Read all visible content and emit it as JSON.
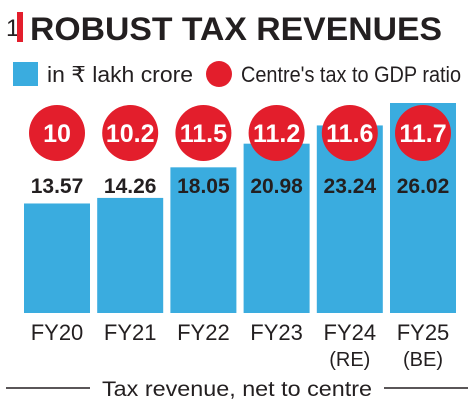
{
  "chart_data": {
    "type": "bar",
    "title_mark": "1",
    "title": "ROBUST TAX REVENUES",
    "legend": [
      {
        "name": "in ₹ lakh crore",
        "marker": "square",
        "color": "#3aacdf"
      },
      {
        "name": "Centre's tax to GDP ratio",
        "marker": "circle",
        "color": "#e31e2c"
      }
    ],
    "categories": [
      "FY20",
      "FY21",
      "FY22",
      "FY23",
      "FY24",
      "FY25"
    ],
    "category_notes": [
      "",
      "",
      "",
      "",
      "(RE)",
      "(BE)"
    ],
    "series": [
      {
        "name": "in ₹ lakh crore",
        "values": [
          13.57,
          14.26,
          18.05,
          20.98,
          23.24,
          26.02
        ]
      },
      {
        "name": "Centre's tax to GDP ratio",
        "values": [
          10,
          10.2,
          11.5,
          11.2,
          11.6,
          11.7
        ]
      }
    ],
    "value_labels": [
      "13.57",
      "14.26",
      "18.05",
      "20.98",
      "23.24",
      "26.02"
    ],
    "ratio_labels": [
      "10",
      "10.2",
      "11.5",
      "11.2",
      "11.6",
      "11.7"
    ],
    "xlabel": "Tax revenue, net to centre",
    "ylim": [
      0,
      26.02
    ],
    "grid": false,
    "legend_placement": "top",
    "colors": {
      "bar": "#3aacdf",
      "bubble": "#e31e2c",
      "bubble_text": "#ffffff",
      "text": "#231f20",
      "accent": "#e31e2c"
    }
  }
}
